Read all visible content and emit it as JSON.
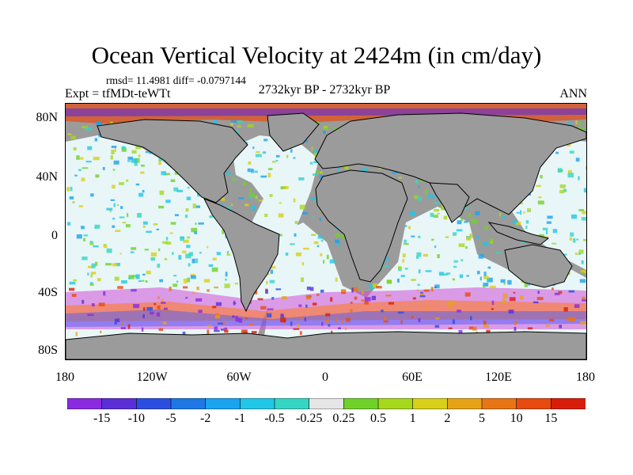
{
  "title": "Ocean Vertical Velocity at 2424m (in cm/day)",
  "stats": "rmsd= 11.4981 diff= -0.0797144",
  "experiment": "Expt = tfMDt-teWTt",
  "period": "2732kyr BP - 2732kyr BP",
  "season": "ANN",
  "lat_labels": [
    "80N",
    "40N",
    "0",
    "40S",
    "80S"
  ],
  "lon_labels": [
    "180",
    "120W",
    "60W",
    "0",
    "60E",
    "120E",
    "180"
  ],
  "colorbar": {
    "labels": [
      "-15",
      "-10",
      "-5",
      "-2",
      "-1",
      "-0.5",
      "-0.25",
      "0.25",
      "0.5",
      "1",
      "2",
      "5",
      "10",
      "15"
    ],
    "colors": [
      "#8a2be2",
      "#5a2fd8",
      "#2a4fe0",
      "#1d78e6",
      "#1aa3ee",
      "#20c7e6",
      "#35d6c4",
      "#e6e6e6",
      "#6fd12a",
      "#a6d81c",
      "#d8d01a",
      "#e6a317",
      "#e87514",
      "#e84a10",
      "#d81e0a"
    ]
  },
  "land_color": "#9b9b9b"
}
